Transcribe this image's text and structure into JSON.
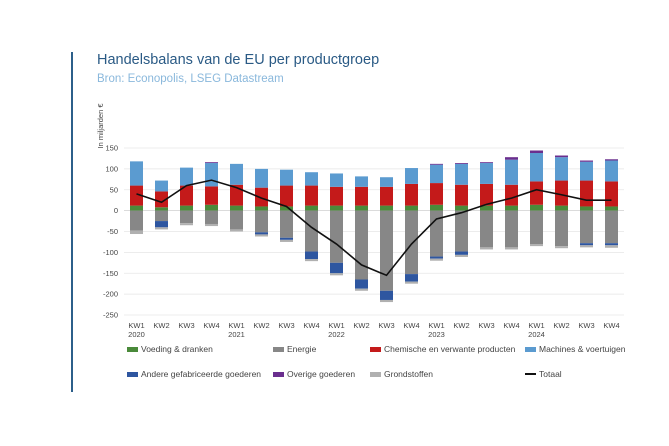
{
  "title": "Handelsbalans van de EU per productgroep",
  "subtitle": "Bron: Econopolis, LSEG Datastream",
  "chart_data": {
    "type": "bar",
    "stacked": true,
    "title": "",
    "ylabel": "In miljarden €",
    "ylim": [
      -250,
      150
    ],
    "yticks": [
      150,
      100,
      50,
      0,
      -50,
      -100,
      -150,
      -200,
      -250
    ],
    "grid": true,
    "legend_position": "bottom",
    "categories": [
      "KW1 2020",
      "KW2",
      "KW3",
      "KW4",
      "KW1 2021",
      "KW2",
      "KW3",
      "KW4",
      "KW1 2022",
      "KW2",
      "KW3",
      "KW4",
      "KW1 2023",
      "KW2",
      "KW3",
      "KW4",
      "KW1 2024",
      "KW2",
      "KW3",
      "KW4"
    ],
    "category_labels": [
      {
        "q": "KW1",
        "year": "2020"
      },
      {
        "q": "KW2",
        "year": ""
      },
      {
        "q": "KW3",
        "year": ""
      },
      {
        "q": "KW4",
        "year": ""
      },
      {
        "q": "KW1",
        "year": "2021"
      },
      {
        "q": "KW2",
        "year": ""
      },
      {
        "q": "KW3",
        "year": ""
      },
      {
        "q": "KW4",
        "year": ""
      },
      {
        "q": "KW1",
        "year": "2022"
      },
      {
        "q": "KW2",
        "year": ""
      },
      {
        "q": "KW3",
        "year": ""
      },
      {
        "q": "KW4",
        "year": ""
      },
      {
        "q": "KW1",
        "year": "2023"
      },
      {
        "q": "KW2",
        "year": ""
      },
      {
        "q": "KW3",
        "year": ""
      },
      {
        "q": "KW4",
        "year": ""
      },
      {
        "q": "KW1",
        "year": "2024"
      },
      {
        "q": "KW2",
        "year": ""
      },
      {
        "q": "KW3",
        "year": ""
      },
      {
        "q": "KW4",
        "year": ""
      }
    ],
    "series": [
      {
        "name": "Voeding & dranken",
        "color": "#4a8a3a",
        "values": [
          12,
          8,
          12,
          14,
          12,
          10,
          10,
          12,
          12,
          12,
          12,
          12,
          14,
          12,
          12,
          12,
          14,
          12,
          10,
          10
        ]
      },
      {
        "name": "Energie",
        "color": "#878787",
        "values": [
          -48,
          -25,
          -30,
          -32,
          -45,
          -52,
          -65,
          -98,
          -125,
          -165,
          -192,
          -152,
          -110,
          -98,
          -88,
          -88,
          -80,
          -85,
          -78,
          -78
        ]
      },
      {
        "name": "Chemische en verwante producten",
        "color": "#c41a1a",
        "values": [
          48,
          38,
          48,
          44,
          50,
          45,
          50,
          48,
          45,
          45,
          45,
          52,
          52,
          50,
          52,
          50,
          56,
          60,
          62,
          60
        ]
      },
      {
        "name": "Machines & voertuigen",
        "color": "#5b9bd0",
        "values": [
          58,
          26,
          43,
          56,
          50,
          45,
          38,
          32,
          32,
          25,
          23,
          38,
          44,
          50,
          50,
          60,
          68,
          56,
          45,
          50
        ]
      },
      {
        "name": "Andere gefabriceerde goederen",
        "color": "#2e56a0",
        "values": [
          0,
          -15,
          0,
          0,
          0,
          -5,
          -5,
          -18,
          -25,
          -22,
          -22,
          -18,
          -5,
          -8,
          0,
          0,
          0,
          0,
          -5,
          -5
        ]
      },
      {
        "name": "Overige goederen",
        "color": "#6a2e8e",
        "values": [
          0,
          0,
          0,
          2,
          0,
          0,
          0,
          0,
          0,
          0,
          0,
          0,
          2,
          2,
          2,
          6,
          6,
          4,
          3,
          3
        ]
      },
      {
        "name": "Grondstoffen",
        "color": "#b0b0b0",
        "values": [
          -8,
          -5,
          -5,
          -5,
          -5,
          -5,
          -5,
          -5,
          -5,
          -5,
          -5,
          -5,
          -5,
          -5,
          -5,
          -5,
          -5,
          -5,
          -5,
          -6
        ]
      }
    ],
    "line": {
      "name": "Totaal",
      "color": "#111111",
      "values": [
        40,
        20,
        60,
        73,
        55,
        30,
        10,
        -40,
        -80,
        -130,
        -155,
        -80,
        -20,
        -5,
        15,
        30,
        50,
        38,
        25,
        25
      ]
    }
  }
}
